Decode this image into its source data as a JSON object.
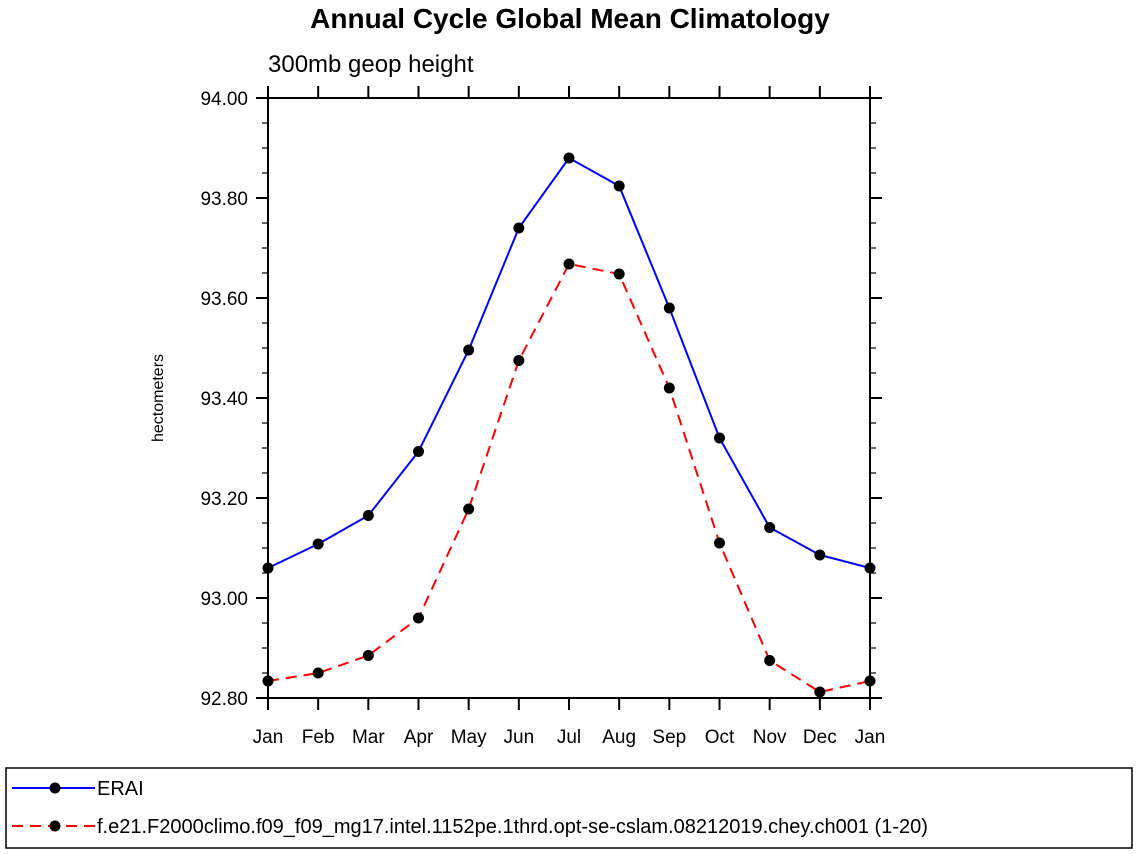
{
  "chart_data": {
    "type": "line",
    "title": "Annual Cycle Global Mean Climatology",
    "subtitle": "300mb geop height",
    "xlabel": "",
    "ylabel": "hectometers",
    "categories": [
      "Jan",
      "Feb",
      "Mar",
      "Apr",
      "May",
      "Jun",
      "Jul",
      "Aug",
      "Sep",
      "Oct",
      "Nov",
      "Dec",
      "Jan"
    ],
    "ylim": [
      92.8,
      94.0
    ],
    "yticks": [
      92.8,
      93.0,
      93.2,
      93.4,
      93.6,
      93.8,
      94.0
    ],
    "ytick_labels": [
      "92.80",
      "93.00",
      "93.20",
      "93.40",
      "93.60",
      "93.80",
      "94.00"
    ],
    "grid": false,
    "legend_position": "bottom",
    "series": [
      {
        "name": "ERAI",
        "color": "#0000ff",
        "line_style": "solid",
        "marker": "filled-circle",
        "values": [
          93.06,
          93.108,
          93.165,
          93.293,
          93.496,
          93.74,
          93.88,
          93.824,
          93.58,
          93.32,
          93.141,
          93.086,
          93.06
        ]
      },
      {
        "name": "f.e21.F2000climo.f09_f09_mg17.intel.1152pe.1thrd.opt-se-cslam.08212019.chey.ch001 (1-20)",
        "color": "#ff0000",
        "line_style": "dashed",
        "marker": "filled-circle",
        "values": [
          92.834,
          92.85,
          92.885,
          92.96,
          93.178,
          93.475,
          93.668,
          93.648,
          93.42,
          93.11,
          92.875,
          92.812,
          92.834
        ]
      }
    ]
  }
}
